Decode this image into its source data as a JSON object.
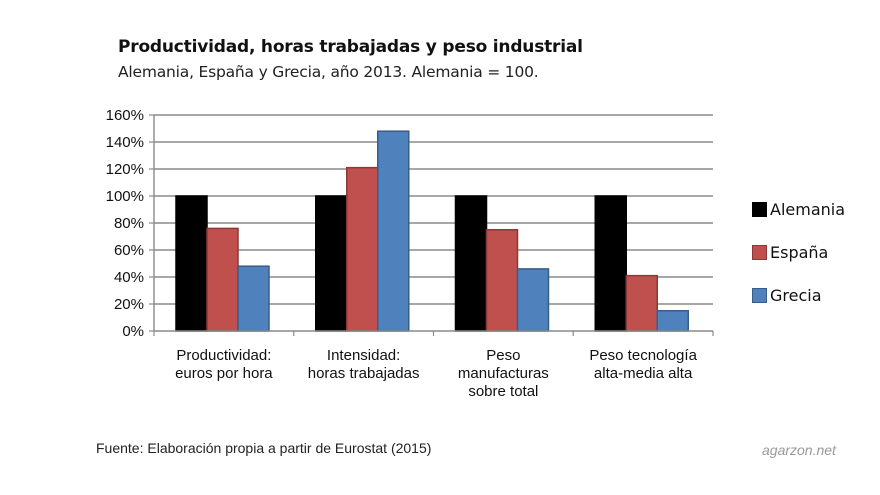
{
  "chart_data": {
    "type": "bar",
    "title": "Productividad, horas trabajadas y peso industrial",
    "subtitle": "Alemania, España y Grecia, año 2013. Alemania = 100.",
    "xlabel": "",
    "ylabel": "",
    "ylim": [
      0,
      160
    ],
    "yticks": [
      0,
      20,
      40,
      60,
      80,
      100,
      120,
      140,
      160
    ],
    "ytick_labels": [
      "0%",
      "20%",
      "40%",
      "60%",
      "80%",
      "100%",
      "120%",
      "140%",
      "160%"
    ],
    "grid": true,
    "legend_position": "right",
    "categories": [
      [
        "Productividad:",
        "euros por hora"
      ],
      [
        "Intensidad:",
        "horas trabajadas"
      ],
      [
        "Peso",
        "manufacturas",
        "sobre total"
      ],
      [
        "Peso tecnología",
        "alta-media alta"
      ]
    ],
    "series": [
      {
        "name": "Alemania",
        "color": "#000000",
        "values": [
          100,
          100,
          100,
          100
        ]
      },
      {
        "name": "España",
        "color": "#c0504d",
        "values": [
          76,
          121,
          75,
          41
        ]
      },
      {
        "name": "Grecia",
        "color": "#4f81bd",
        "values": [
          48,
          148,
          46,
          15
        ]
      }
    ]
  },
  "footer": {
    "source": "Fuente: Elaboración propia a partir de Eurostat (2015)",
    "watermark": "agarzon.net"
  }
}
